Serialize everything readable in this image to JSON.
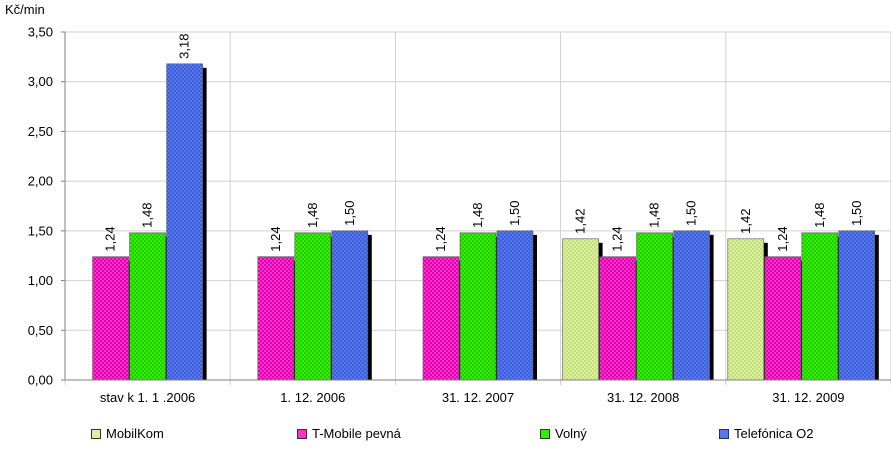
{
  "chart_data": {
    "type": "bar",
    "ylabel": "Kč/min",
    "ylim": [
      0,
      3.5
    ],
    "yticks": [
      "0,00",
      "0,50",
      "1,00",
      "1,50",
      "2,00",
      "2,50",
      "3,00",
      "3,50"
    ],
    "grid": true,
    "legend_position": "bottom",
    "categories": [
      "stav k  1. 1 .2006",
      "1. 12. 2006",
      "31. 12. 2007",
      "31. 12. 2008",
      "31. 12. 2009"
    ],
    "series": [
      {
        "name": "MobilKom",
        "color": "#d9f0a0",
        "values": [
          null,
          null,
          null,
          1.42,
          1.42
        ],
        "labels": [
          null,
          null,
          null,
          "1,42",
          "1,42"
        ]
      },
      {
        "name": "T-Mobile pevná",
        "color": "#ff33cc",
        "values": [
          1.24,
          1.24,
          1.24,
          1.24,
          1.24
        ],
        "labels": [
          "1,24",
          "1,24",
          "1,24",
          "1,24",
          "1,24"
        ]
      },
      {
        "name": "Volný",
        "color": "#33ee00",
        "values": [
          1.48,
          1.48,
          1.48,
          1.48,
          1.48
        ],
        "labels": [
          "1,48",
          "1,48",
          "1,48",
          "1,48",
          "1,48"
        ]
      },
      {
        "name": "Telefónica O2",
        "color": "#5577ee",
        "values": [
          3.18,
          1.5,
          1.5,
          1.5,
          1.5
        ],
        "labels": [
          "3,18",
          "1,50",
          "1,50",
          "1,50",
          "1,50"
        ]
      }
    ]
  }
}
